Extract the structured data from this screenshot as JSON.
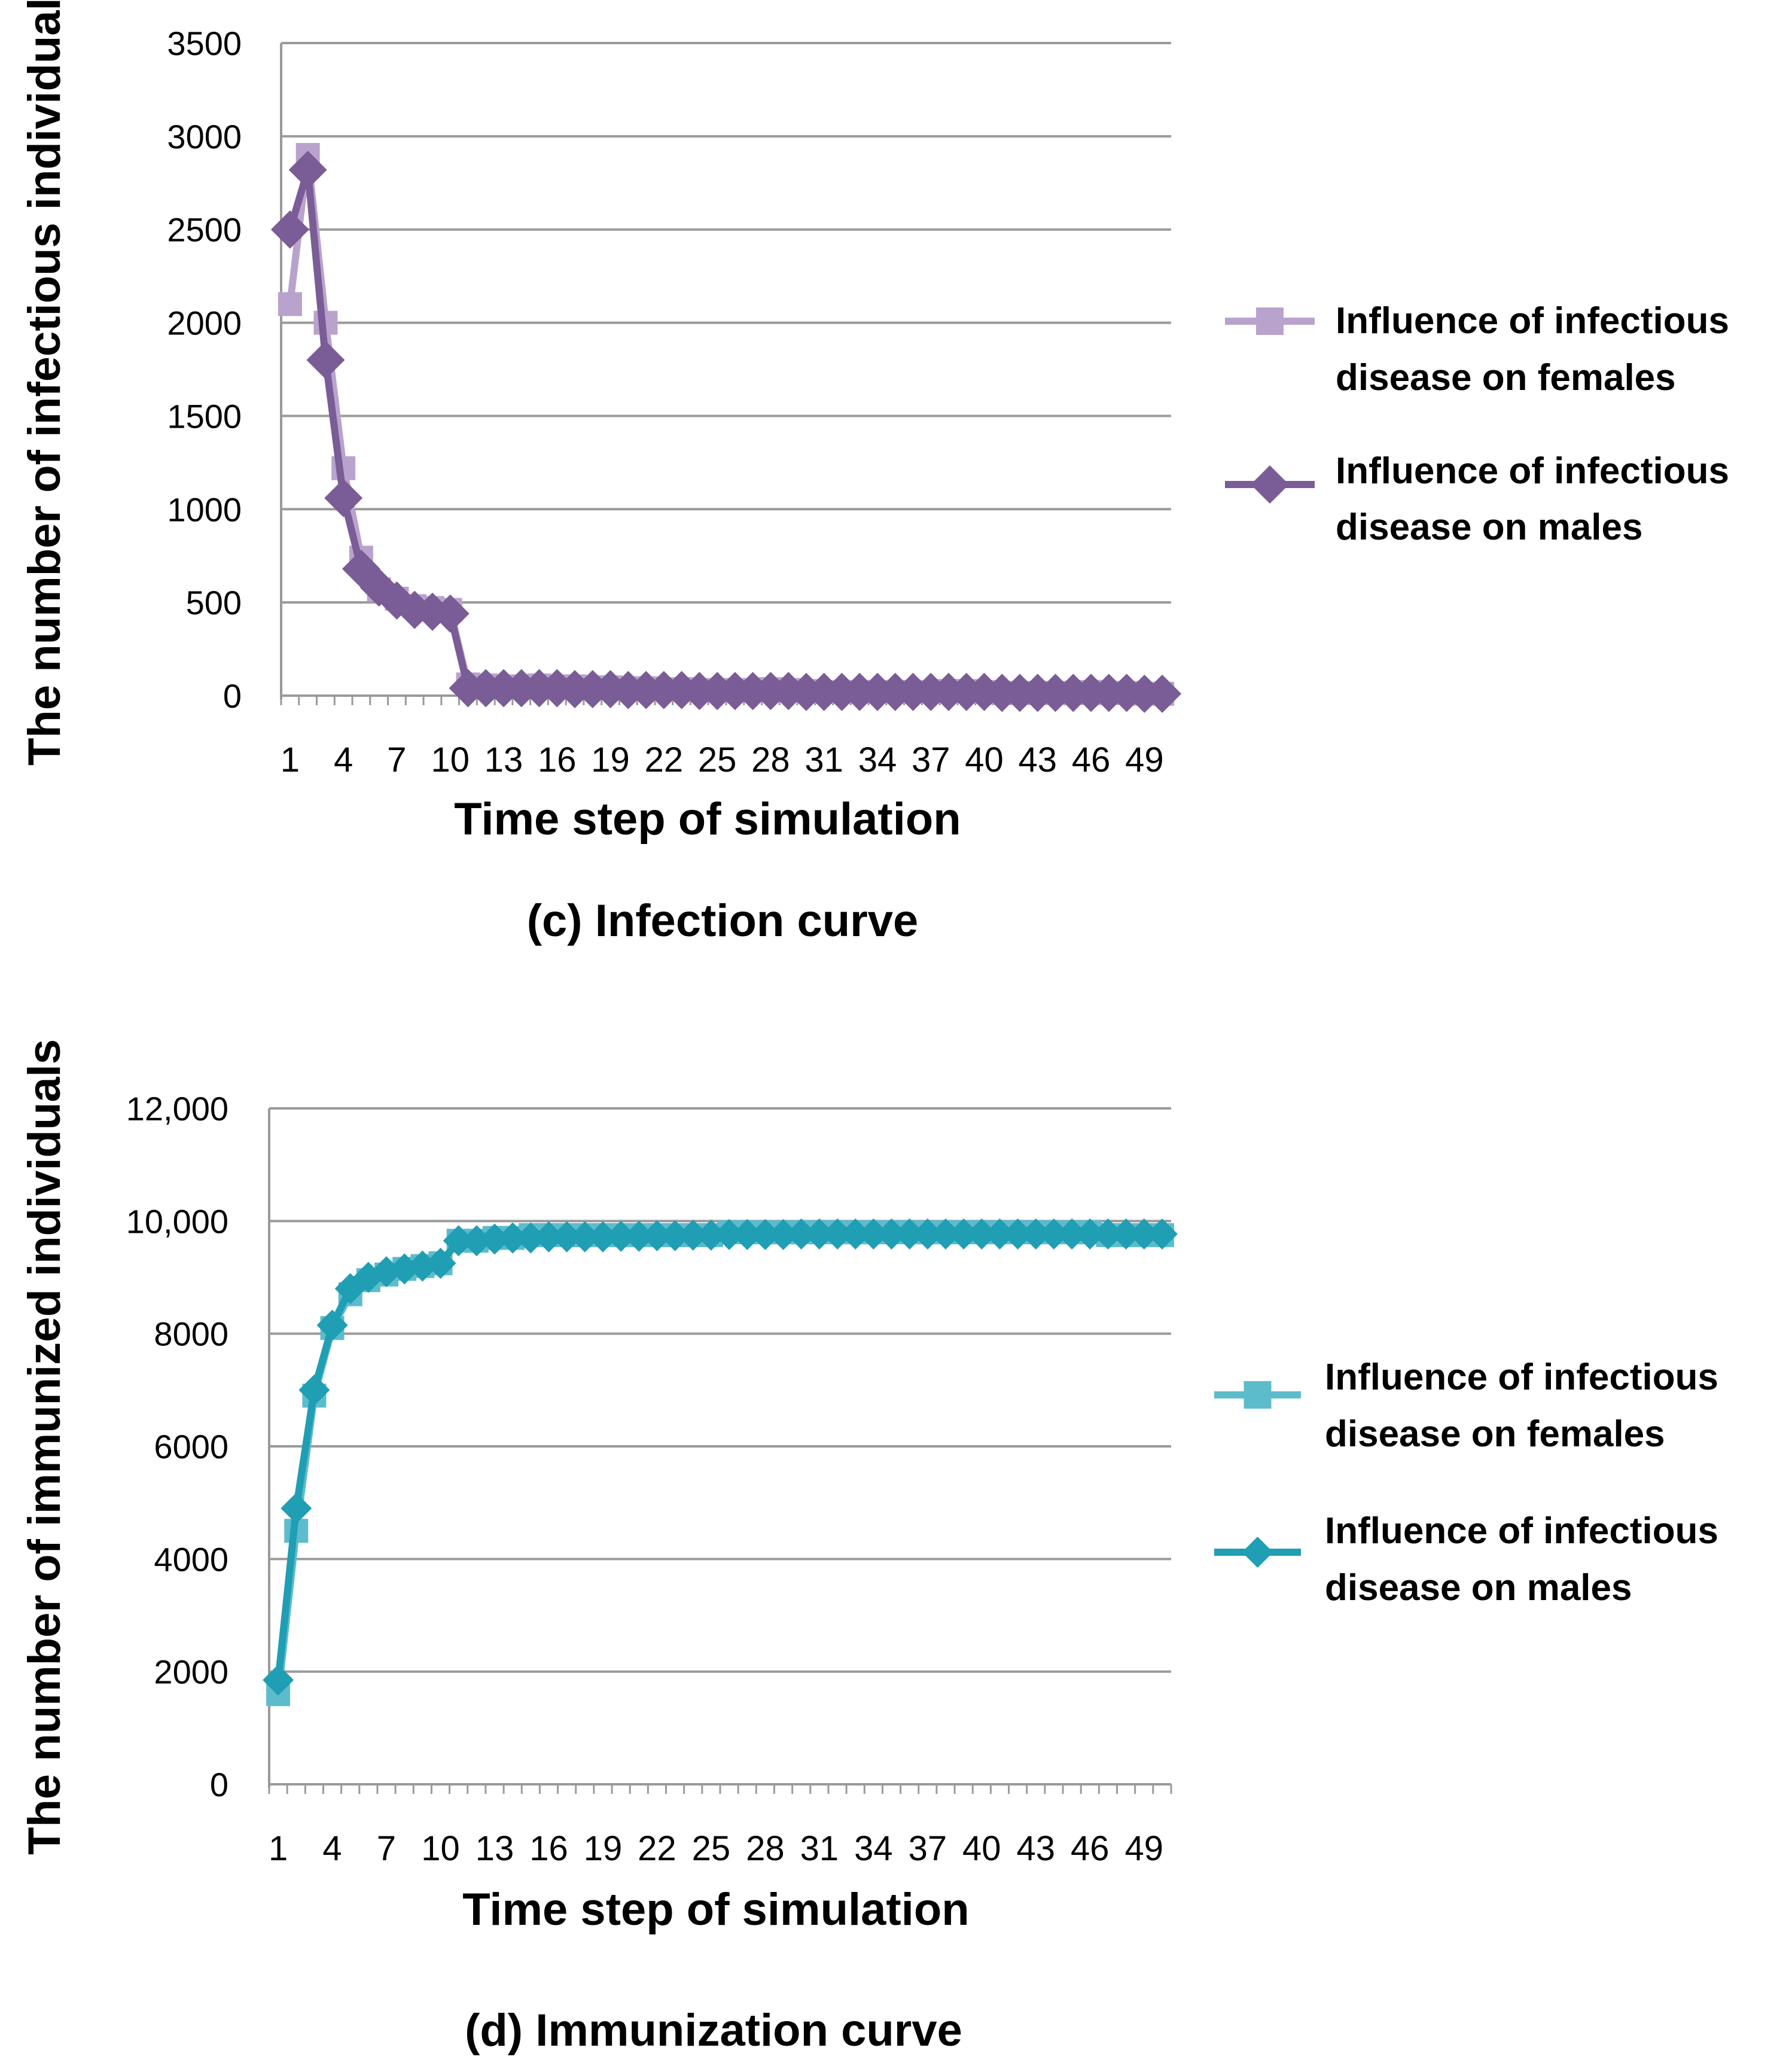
{
  "chart_data": [
    {
      "id": "c",
      "type": "line",
      "caption": "(c) Infection curve",
      "xlabel": "Time step of simulation",
      "ylabel": "The number of infectious individuals",
      "ylim": [
        0,
        3500
      ],
      "yticks": [
        "0",
        "500",
        "1000",
        "1500",
        "2000",
        "2500",
        "3000",
        "3500"
      ],
      "ytick_values": [
        0,
        500,
        1000,
        1500,
        2000,
        2500,
        3000,
        3500
      ],
      "xtick_labels": [
        "1",
        "4",
        "7",
        "10",
        "13",
        "16",
        "19",
        "22",
        "25",
        "28",
        "31",
        "34",
        "37",
        "40",
        "43",
        "46",
        "49"
      ],
      "x": [
        1,
        2,
        3,
        4,
        5,
        6,
        7,
        8,
        9,
        10,
        11,
        12,
        13,
        14,
        15,
        16,
        17,
        18,
        19,
        20,
        21,
        22,
        23,
        24,
        25,
        26,
        27,
        28,
        29,
        30,
        31,
        32,
        33,
        34,
        35,
        36,
        37,
        38,
        39,
        40,
        41,
        42,
        43,
        44,
        45,
        46,
        47,
        48,
        49,
        50
      ],
      "series": [
        {
          "name_lines": [
            "Influence of infectious",
            "disease on females"
          ],
          "marker": "square",
          "color": "#b9a3cc",
          "values": [
            2100,
            2900,
            2000,
            1220,
            740,
            570,
            520,
            480,
            470,
            460,
            60,
            55,
            50,
            50,
            55,
            50,
            50,
            45,
            45,
            40,
            40,
            35,
            35,
            30,
            30,
            30,
            30,
            35,
            30,
            25,
            20,
            20,
            20,
            20,
            20,
            20,
            20,
            25,
            25,
            20,
            15,
            15,
            15,
            15,
            15,
            20,
            15,
            15,
            10,
            10
          ]
        },
        {
          "name_lines": [
            "Influence of infectious",
            "disease on males"
          ],
          "marker": "diamond",
          "color": "#7a5c96",
          "values": [
            2500,
            2820,
            1800,
            1060,
            680,
            580,
            510,
            460,
            450,
            440,
            40,
            40,
            40,
            40,
            40,
            40,
            35,
            35,
            35,
            30,
            30,
            30,
            30,
            25,
            25,
            25,
            25,
            25,
            25,
            20,
            20,
            20,
            20,
            20,
            20,
            20,
            20,
            20,
            20,
            20,
            15,
            15,
            15,
            15,
            15,
            15,
            15,
            15,
            10,
            10
          ]
        }
      ]
    },
    {
      "id": "d",
      "type": "line",
      "caption": "(d) Immunization curve",
      "xlabel": "Time step of simulation",
      "ylabel": "The number of immunized individuals",
      "ylim": [
        0,
        12000
      ],
      "yticks": [
        "0",
        "2000",
        "4000",
        "6000",
        "8000",
        "10,000",
        "12,000"
      ],
      "ytick_values": [
        0,
        2000,
        4000,
        6000,
        8000,
        10000,
        12000
      ],
      "xtick_labels": [
        "1",
        "4",
        "7",
        "10",
        "13",
        "16",
        "19",
        "22",
        "25",
        "28",
        "31",
        "34",
        "37",
        "40",
        "43",
        "46",
        "49"
      ],
      "x": [
        1,
        2,
        3,
        4,
        5,
        6,
        7,
        8,
        9,
        10,
        11,
        12,
        13,
        14,
        15,
        16,
        17,
        18,
        19,
        20,
        21,
        22,
        23,
        24,
        25,
        26,
        27,
        28,
        29,
        30,
        31,
        32,
        33,
        34,
        35,
        36,
        37,
        38,
        39,
        40,
        41,
        42,
        43,
        44,
        45,
        46,
        47,
        48,
        49,
        50
      ],
      "series": [
        {
          "name_lines": [
            "Influence of infectious",
            "disease on females"
          ],
          "marker": "square",
          "color": "#5cbccc",
          "values": [
            1600,
            4500,
            6900,
            8100,
            8700,
            8950,
            9050,
            9150,
            9200,
            9250,
            9650,
            9650,
            9700,
            9700,
            9750,
            9750,
            9750,
            9750,
            9750,
            9750,
            9750,
            9750,
            9750,
            9750,
            9750,
            9800,
            9800,
            9800,
            9800,
            9800,
            9800,
            9800,
            9800,
            9800,
            9800,
            9800,
            9800,
            9800,
            9800,
            9800,
            9800,
            9800,
            9800,
            9800,
            9800,
            9800,
            9750,
            9750,
            9750,
            9750
          ]
        },
        {
          "name_lines": [
            "Influence of infectious",
            "disease on males"
          ],
          "marker": "diamond",
          "color": "#1f9eb4",
          "values": [
            1850,
            4900,
            7000,
            8150,
            8800,
            9000,
            9100,
            9150,
            9200,
            9250,
            9650,
            9650,
            9680,
            9700,
            9700,
            9720,
            9720,
            9720,
            9720,
            9730,
            9730,
            9740,
            9740,
            9750,
            9750,
            9760,
            9760,
            9760,
            9760,
            9770,
            9770,
            9770,
            9770,
            9770,
            9770,
            9770,
            9770,
            9770,
            9770,
            9770,
            9770,
            9770,
            9770,
            9770,
            9770,
            9770,
            9770,
            9770,
            9770,
            9770
          ]
        }
      ]
    }
  ]
}
